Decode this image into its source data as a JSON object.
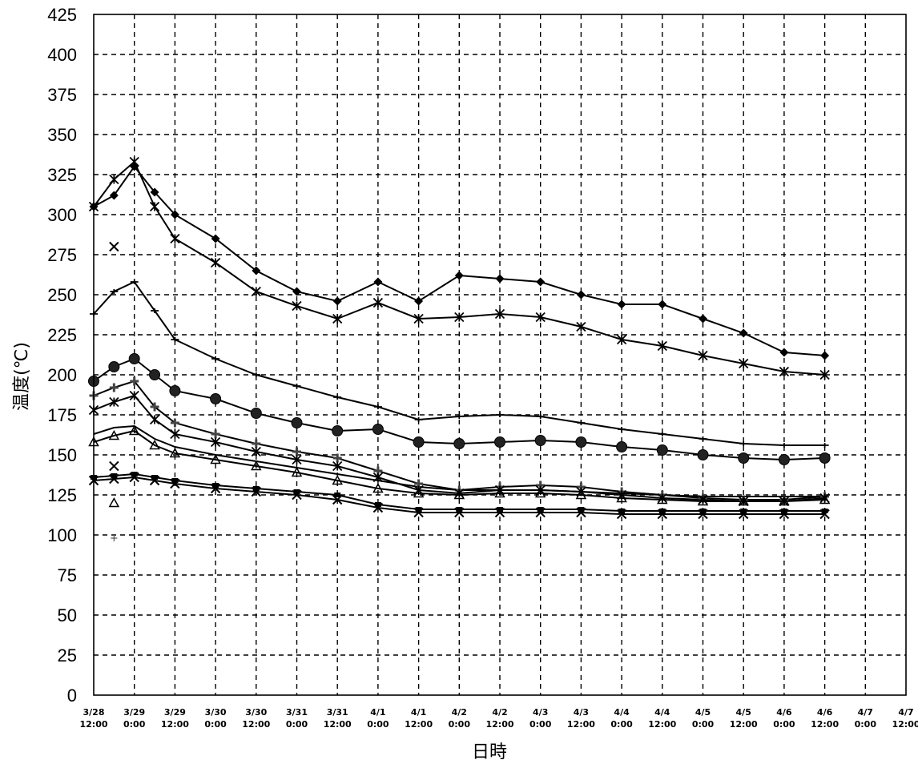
{
  "chart_data": {
    "type": "line",
    "title": "",
    "xlabel": "日時",
    "ylabel": "温度(℃)",
    "ylim": [
      0,
      425
    ],
    "yticks": [
      0,
      25,
      50,
      75,
      100,
      125,
      150,
      175,
      200,
      225,
      250,
      275,
      300,
      325,
      350,
      375,
      400,
      425
    ],
    "xlim": [
      "3/28 12:00",
      "4/7 12:00"
    ],
    "xticks": [
      [
        "3/28",
        "12:00"
      ],
      [
        "3/29",
        "0:00"
      ],
      [
        "3/29",
        "12:00"
      ],
      [
        "3/30",
        "0:00"
      ],
      [
        "3/30",
        "12:00"
      ],
      [
        "3/31",
        "0:00"
      ],
      [
        "3/31",
        "12:00"
      ],
      [
        "4/1",
        "0:00"
      ],
      [
        "4/1",
        "12:00"
      ],
      [
        "4/2",
        "0:00"
      ],
      [
        "4/2",
        "12:00"
      ],
      [
        "4/3",
        "0:00"
      ],
      [
        "4/3",
        "12:00"
      ],
      [
        "4/4",
        "0:00"
      ],
      [
        "4/4",
        "12:00"
      ],
      [
        "4/5",
        "0:00"
      ],
      [
        "4/5",
        "12:00"
      ],
      [
        "4/6",
        "0:00"
      ],
      [
        "4/6",
        "12:00"
      ],
      [
        "4/7",
        "0:00"
      ],
      [
        "4/7",
        "12:00"
      ]
    ],
    "grid": true,
    "series": [
      {
        "marker": "diamond",
        "x": [
          "3/28 12:00",
          "3/28 18:00",
          "3/29 0:00",
          "3/29 6:00",
          "3/29 12:00",
          "3/30 0:00",
          "3/30 12:00",
          "3/31 0:00",
          "3/31 12:00",
          "4/1 0:00",
          "4/1 12:00",
          "4/2 0:00",
          "4/2 12:00",
          "4/3 0:00",
          "4/3 12:00",
          "4/4 0:00",
          "4/4 12:00",
          "4/5 0:00",
          "4/5 12:00",
          "4/6 0:00",
          "4/6 12:00"
        ],
        "y": [
          305,
          312,
          330,
          314,
          300,
          285,
          265,
          252,
          246,
          258,
          246,
          262,
          260,
          258,
          250,
          244,
          244,
          235,
          226,
          214,
          212
        ]
      },
      {
        "marker": "star",
        "x": [
          "3/28 12:00",
          "3/28 18:00",
          "3/29 0:00",
          "3/29 6:00",
          "3/29 12:00",
          "3/30 0:00",
          "3/30 12:00",
          "3/31 0:00",
          "3/31 12:00",
          "4/1 0:00",
          "4/1 12:00",
          "4/2 0:00",
          "4/2 12:00",
          "4/3 0:00",
          "4/3 12:00",
          "4/4 0:00",
          "4/4 12:00",
          "4/5 0:00",
          "4/5 12:00",
          "4/6 0:00",
          "4/6 12:00"
        ],
        "y": [
          305,
          322,
          333,
          305,
          285,
          270,
          252,
          243,
          235,
          245,
          235,
          236,
          238,
          236,
          230,
          222,
          218,
          212,
          207,
          202,
          200
        ]
      },
      {
        "marker": "dash",
        "x": [
          "3/28 12:00",
          "3/28 18:00",
          "3/29 0:00",
          "3/29 6:00",
          "3/29 12:00",
          "3/30 0:00",
          "3/30 12:00",
          "3/31 0:00",
          "3/31 12:00",
          "4/1 0:00",
          "4/1 12:00",
          "4/2 0:00",
          "4/2 12:00",
          "4/3 0:00",
          "4/3 12:00",
          "4/4 0:00",
          "4/4 12:00",
          "4/5 0:00",
          "4/5 12:00",
          "4/6 0:00",
          "4/6 12:00"
        ],
        "y": [
          238,
          252,
          258,
          240,
          222,
          210,
          200,
          193,
          186,
          180,
          172,
          174,
          175,
          174,
          170,
          166,
          163,
          160,
          157,
          156,
          156
        ]
      },
      {
        "marker": "circle",
        "x": [
          "3/28 12:00",
          "3/28 18:00",
          "3/29 0:00",
          "3/29 6:00",
          "3/29 12:00",
          "3/30 0:00",
          "3/30 12:00",
          "3/31 0:00",
          "3/31 12:00",
          "4/1 0:00",
          "4/1 12:00",
          "4/2 0:00",
          "4/2 12:00",
          "4/3 0:00",
          "4/3 12:00",
          "4/4 0:00",
          "4/4 12:00",
          "4/5 0:00",
          "4/5 12:00",
          "4/6 0:00",
          "4/6 12:00"
        ],
        "y": [
          196,
          205,
          210,
          200,
          190,
          185,
          176,
          170,
          165,
          166,
          158,
          157,
          158,
          159,
          158,
          155,
          153,
          150,
          148,
          147,
          148
        ]
      },
      {
        "marker": "cross",
        "x": [
          "3/28 12:00",
          "3/28 18:00",
          "3/29 0:00",
          "3/29 6:00",
          "3/29 12:00",
          "3/30 0:00",
          "3/30 12:00",
          "3/31 0:00",
          "3/31 12:00",
          "4/1 0:00",
          "4/1 12:00",
          "4/2 0:00",
          "4/2 12:00",
          "4/3 0:00",
          "4/3 12:00",
          "4/4 0:00",
          "4/4 12:00",
          "4/5 0:00",
          "4/5 12:00",
          "4/6 0:00",
          "4/6 12:00"
        ],
        "y": [
          187,
          192,
          196,
          180,
          170,
          163,
          157,
          152,
          148,
          140,
          132,
          128,
          130,
          131,
          130,
          127,
          125,
          123,
          122,
          122,
          124
        ]
      },
      {
        "marker": "star",
        "x": [
          "3/28 12:00",
          "3/28 18:00",
          "3/29 0:00",
          "3/29 6:00",
          "3/29 12:00",
          "3/30 0:00",
          "3/30 12:00",
          "3/31 0:00",
          "3/31 12:00",
          "4/1 0:00",
          "4/1 12:00",
          "4/2 0:00",
          "4/2 12:00",
          "4/3 0:00",
          "4/3 12:00",
          "4/4 0:00",
          "4/4 12:00",
          "4/5 0:00",
          "4/5 12:00",
          "4/6 0:00",
          "4/6 12:00"
        ],
        "y": [
          178,
          183,
          187,
          172,
          163,
          158,
          152,
          147,
          143,
          136,
          128,
          126,
          128,
          128,
          127,
          125,
          123,
          122,
          121,
          121,
          123
        ]
      },
      {
        "marker": "triangle",
        "x": [
          "3/28 12:00",
          "3/28 18:00",
          "3/29 0:00",
          "3/29 6:00",
          "3/29 12:00",
          "3/30 0:00",
          "3/30 12:00",
          "3/31 0:00",
          "3/31 12:00",
          "4/1 0:00",
          "4/1 12:00",
          "4/2 0:00",
          "4/2 12:00",
          "4/3 0:00",
          "4/3 12:00",
          "4/4 0:00",
          "4/4 12:00",
          "4/5 0:00",
          "4/5 12:00",
          "4/6 0:00",
          "4/6 12:00"
        ],
        "y": [
          158,
          162,
          165,
          156,
          151,
          147,
          143,
          139,
          134,
          129,
          126,
          125,
          126,
          126,
          125,
          123,
          122,
          121,
          121,
          121,
          122
        ]
      },
      {
        "marker": "none",
        "x": [
          "3/28 12:00",
          "3/28 18:00",
          "3/29 0:00",
          "3/29 6:00",
          "3/29 12:00",
          "3/30 0:00",
          "3/30 12:00",
          "3/31 0:00",
          "3/31 12:00",
          "4/1 0:00",
          "4/1 12:00",
          "4/2 0:00",
          "4/2 12:00",
          "4/3 0:00",
          "4/3 12:00",
          "4/4 0:00",
          "4/4 12:00",
          "4/5 0:00",
          "4/5 12:00",
          "4/6 0:00",
          "4/6 12:00"
        ],
        "y": [
          163,
          167,
          168,
          160,
          155,
          150,
          146,
          142,
          138,
          134,
          130,
          128,
          128,
          128,
          127,
          126,
          125,
          124,
          124,
          124,
          124
        ]
      },
      {
        "marker": "square",
        "x": [
          "3/28 12:00",
          "3/28 18:00",
          "3/29 0:00",
          "3/29 6:00",
          "3/29 12:00",
          "3/30 0:00",
          "3/30 12:00",
          "3/31 0:00",
          "3/31 12:00",
          "4/1 0:00",
          "4/1 12:00",
          "4/2 0:00",
          "4/2 12:00",
          "4/3 0:00",
          "4/3 12:00",
          "4/4 0:00",
          "4/4 12:00",
          "4/5 0:00",
          "4/5 12:00",
          "4/6 0:00",
          "4/6 12:00"
        ],
        "y": [
          136,
          137,
          138,
          136,
          134,
          131,
          129,
          127,
          125,
          119,
          116,
          116,
          116,
          116,
          116,
          115,
          115,
          115,
          115,
          115,
          115
        ]
      },
      {
        "marker": "x",
        "x": [
          "3/28 12:00",
          "3/28 18:00",
          "3/29 0:00",
          "3/29 6:00",
          "3/29 12:00",
          "3/30 0:00",
          "3/30 12:00",
          "3/31 0:00",
          "3/31 12:00",
          "4/1 0:00",
          "4/1 12:00",
          "4/2 0:00",
          "4/2 12:00",
          "4/3 0:00",
          "4/3 12:00",
          "4/4 0:00",
          "4/4 12:00",
          "4/5 0:00",
          "4/5 12:00",
          "4/6 0:00",
          "4/6 12:00"
        ],
        "y": [
          134,
          135,
          136,
          134,
          132,
          129,
          127,
          125,
          122,
          117,
          114,
          114,
          114,
          114,
          114,
          113,
          113,
          113,
          113,
          113,
          113
        ]
      }
    ],
    "stray_markers": [
      {
        "marker": "x",
        "x": "3/28 18:00",
        "y": 280
      },
      {
        "marker": "x",
        "x": "3/28 18:00",
        "y": 143
      },
      {
        "marker": "triangle",
        "x": "3/28 18:00",
        "y": 120
      },
      {
        "marker": "tick",
        "x": "3/28 18:00",
        "y": 98
      }
    ]
  }
}
